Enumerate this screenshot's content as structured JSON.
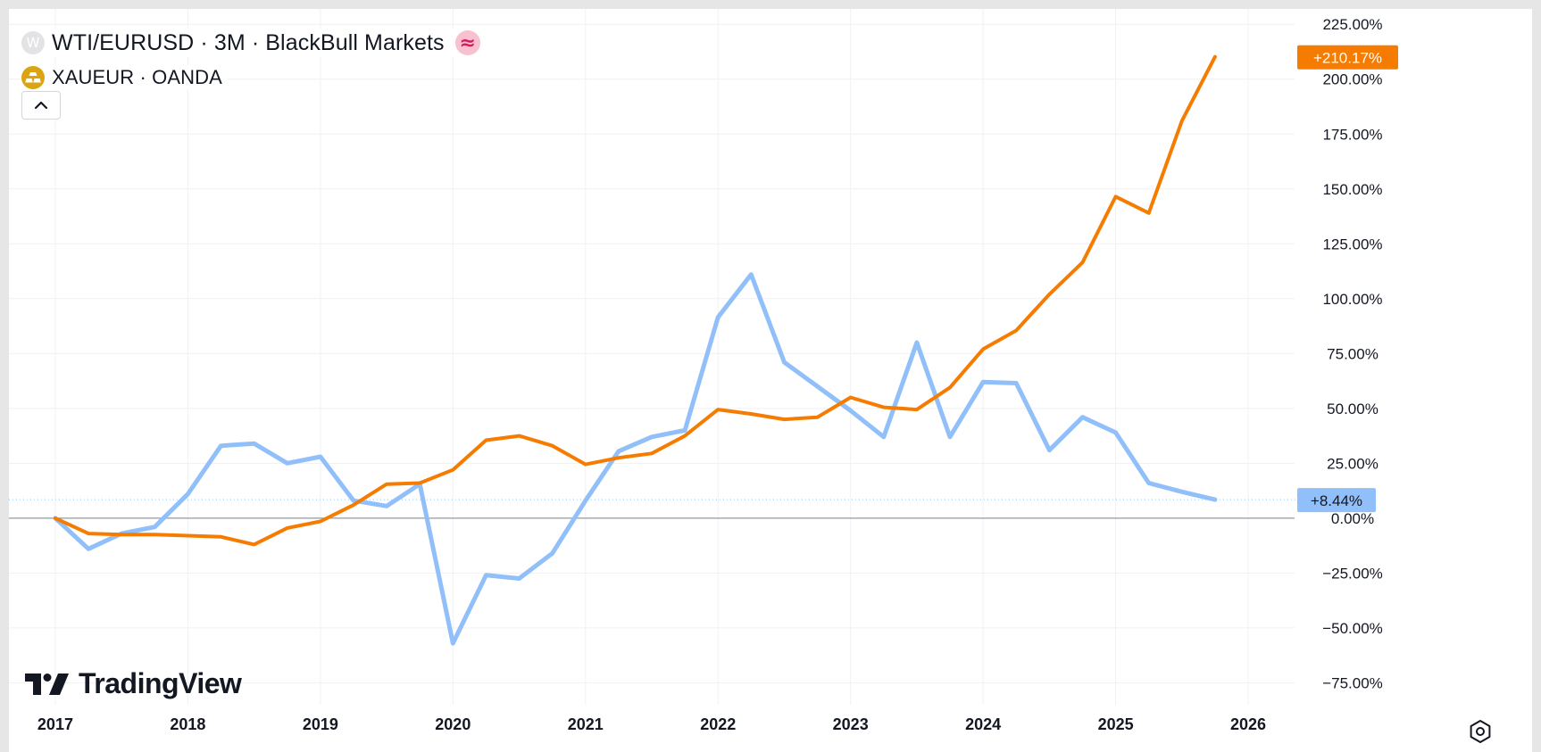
{
  "legend": {
    "series1": {
      "badge": "W",
      "label": "WTI/EURUSD · 3M · BlackBull Markets",
      "compare_icon": "≈"
    },
    "series2": {
      "badge": "gold-bars-icon",
      "label": "XAUEUR · OANDA"
    }
  },
  "branding": {
    "name": "TradingView"
  },
  "chart_data": {
    "type": "line",
    "title": "WTI/EURUSD · 3M · BlackBull Markets",
    "xlabel": "",
    "ylabel": "",
    "y_unit": "%",
    "ylim": [
      -85,
      232
    ],
    "xlim": [
      2016.65,
      2026.35
    ],
    "grid": true,
    "x_ticks": [
      2017,
      2018,
      2019,
      2020,
      2021,
      2022,
      2023,
      2024,
      2025,
      2026
    ],
    "x_tick_labels": [
      "2017",
      "2018",
      "2019",
      "2020",
      "2021",
      "2022",
      "2023",
      "2024",
      "2025",
      "2026"
    ],
    "y_ticks": [
      225,
      200,
      175,
      150,
      125,
      100,
      75,
      50,
      25,
      0,
      -25,
      -50,
      -75
    ],
    "y_tick_labels": [
      "225.00%",
      "200.00%",
      "175.00%",
      "150.00%",
      "125.00%",
      "100.00%",
      "75.00%",
      "50.00%",
      "25.00%",
      "0.00%",
      "−25.00%",
      "−50.00%",
      "−75.00%"
    ],
    "zero_line": 0,
    "series": [
      {
        "name": "XAUEUR · OANDA",
        "color": "#f57c00",
        "last_value_label": "+210.17%",
        "x": [
          2017.0,
          2017.25,
          2017.5,
          2017.75,
          2018.0,
          2018.25,
          2018.5,
          2018.75,
          2019.0,
          2019.25,
          2019.5,
          2019.75,
          2020.0,
          2020.25,
          2020.5,
          2020.75,
          2021.0,
          2021.25,
          2021.5,
          2021.75,
          2022.0,
          2022.25,
          2022.5,
          2022.75,
          2023.0,
          2023.25,
          2023.5,
          2023.75,
          2024.0,
          2024.25,
          2024.5,
          2024.75,
          2025.0,
          2025.25,
          2025.5,
          2025.75
        ],
        "values": [
          0,
          -7,
          -7.5,
          -7.5,
          -8,
          -8.5,
          -12,
          -4.5,
          -1.5,
          6,
          15.5,
          16,
          22,
          35.5,
          37.5,
          33,
          24.5,
          27.5,
          29.5,
          37.5,
          49.5,
          47.5,
          45,
          46,
          55,
          50.5,
          49.5,
          59.5,
          77,
          85.5,
          102,
          116.5,
          146.5,
          139,
          181,
          210.17
        ]
      },
      {
        "name": "WTI/EURUSD · 3M · BlackBull Markets",
        "color": "#90bff9",
        "last_value_label": "+8.44%",
        "x": [
          2017.0,
          2017.25,
          2017.5,
          2017.75,
          2018.0,
          2018.25,
          2018.5,
          2018.75,
          2019.0,
          2019.25,
          2019.5,
          2019.75,
          2020.0,
          2020.25,
          2020.5,
          2020.75,
          2021.0,
          2021.25,
          2021.5,
          2021.75,
          2022.0,
          2022.25,
          2022.5,
          2022.75,
          2023.0,
          2023.25,
          2023.5,
          2023.75,
          2024.0,
          2024.25,
          2024.5,
          2024.75,
          2025.0,
          2025.25,
          2025.5,
          2025.75
        ],
        "values": [
          0,
          -14,
          -7,
          -4,
          11,
          33,
          34,
          25,
          28,
          8,
          5.5,
          15.5,
          -57,
          -26,
          -27.5,
          -16,
          8,
          30.5,
          37,
          40,
          91.5,
          111,
          71,
          60,
          49,
          37,
          80,
          37,
          62,
          61.5,
          31,
          46,
          39,
          16,
          12,
          8.44
        ]
      }
    ]
  }
}
